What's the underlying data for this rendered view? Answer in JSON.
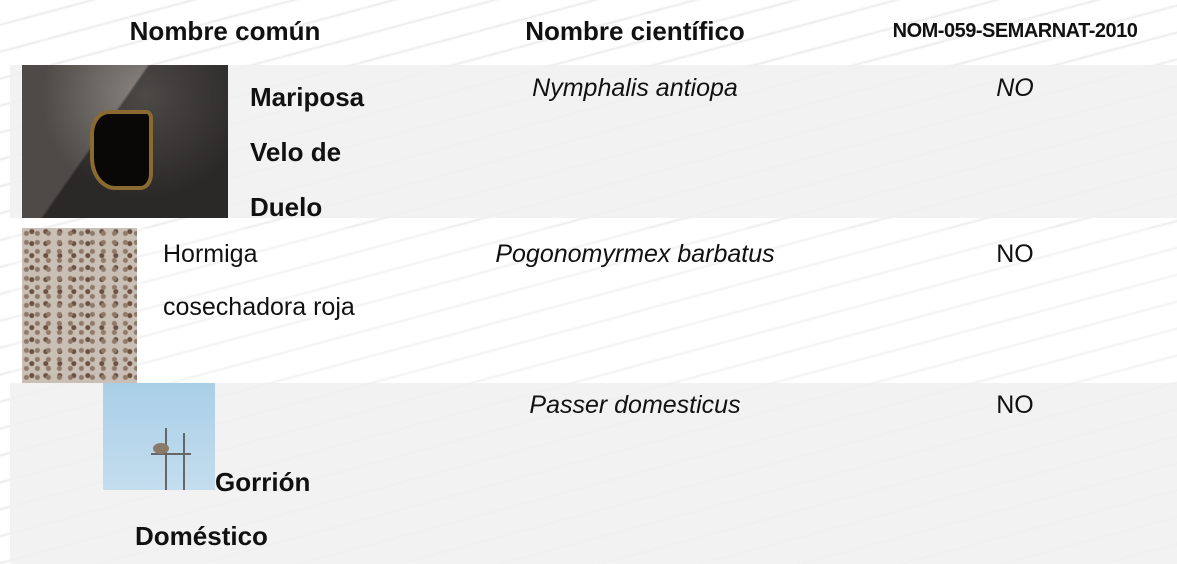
{
  "header": {
    "columns": [
      "Nombre común",
      "Nombre científico",
      "NOM-059-SEMARNAT-2010"
    ]
  },
  "rows": [
    {
      "common_name": "Mariposa Velo de Duelo",
      "scientific_name": "Nymphalis antiopa",
      "status": "NO"
    },
    {
      "common_name": "Hormiga cosechadora roja",
      "scientific_name": "Pogonomyrmex barbatus",
      "status": "NO"
    },
    {
      "common_name": "Gorrión Doméstico",
      "scientific_name": "Passer domesticus",
      "status": "NO"
    }
  ]
}
